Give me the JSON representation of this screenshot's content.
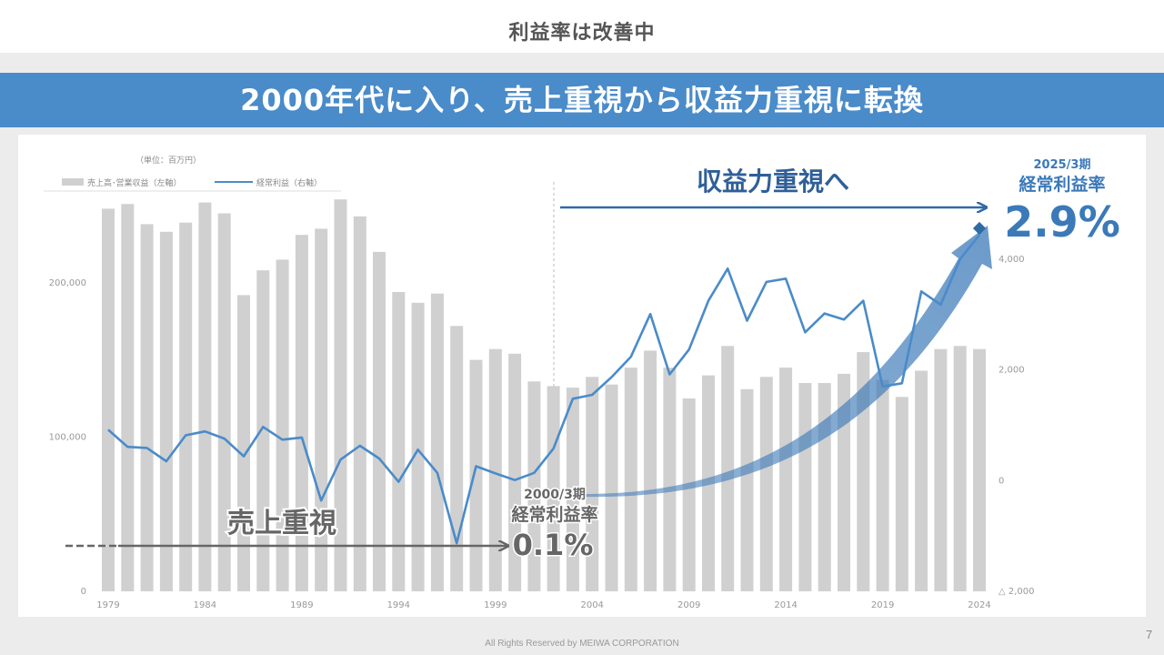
{
  "page": {
    "title": "利益率は改善中",
    "banner": "2000年代に入り、売上重視から収益力重視に転換",
    "footer": "All Rights Reserved by MEIWA CORPORATION",
    "page_number": "7"
  },
  "colors": {
    "banner": "#4a8bc9",
    "bar": "#d0d0d0",
    "line": "#4a8bc9",
    "accent_blue": "#3b79b8",
    "dark_gray": "#666666"
  },
  "chart_data": {
    "type": "bar+line",
    "unit_note": "（単位：百万円）",
    "legend": [
      {
        "name": "売上高･営業収益（左軸）",
        "type": "bar"
      },
      {
        "name": "経常利益（右軸）",
        "type": "line"
      }
    ],
    "categories": [
      "1979",
      "1980",
      "1981",
      "1982",
      "1983",
      "1984",
      "1985",
      "1986",
      "1987",
      "1988",
      "1989",
      "1990",
      "1991",
      "1992",
      "1993",
      "1994",
      "1995",
      "1996",
      "1997",
      "1998",
      "1999",
      "2000",
      "2001",
      "2002",
      "2003",
      "2004",
      "2005",
      "2006",
      "2007",
      "2008",
      "2009",
      "2010",
      "2011",
      "2012",
      "2013",
      "2014",
      "2015",
      "2016",
      "2017",
      "2018",
      "2019",
      "2020",
      "2021",
      "2022",
      "2023",
      "2024"
    ],
    "x_tick_labels": [
      "1979",
      "1984",
      "1989",
      "1994",
      "1999",
      "2004",
      "2009",
      "2014",
      "2019",
      "2024"
    ],
    "series": [
      {
        "name": "売上高･営業収益（左軸）",
        "axis": "left",
        "values": [
          248000,
          251000,
          238000,
          233000,
          239000,
          252000,
          245000,
          192000,
          208000,
          215000,
          231000,
          235000,
          254000,
          243000,
          220000,
          194000,
          187000,
          193000,
          172000,
          150000,
          157000,
          154000,
          136000,
          133000,
          132000,
          139000,
          134000,
          145000,
          156000,
          145000,
          125000,
          140000,
          159000,
          131000,
          139000,
          145000,
          135000,
          135000,
          141000,
          155000,
          137000,
          126000,
          143000,
          157000,
          159000,
          157000
        ]
      },
      {
        "name": "経常利益（右軸）",
        "axis": "right",
        "values": [
          920,
          610,
          590,
          350,
          820,
          890,
          760,
          440,
          970,
          740,
          780,
          -360,
          380,
          630,
          400,
          -20,
          560,
          140,
          -1130,
          260,
          130,
          10,
          140,
          580,
          1480,
          1550,
          1870,
          2240,
          3010,
          1920,
          2370,
          3250,
          3830,
          2890,
          3590,
          3650,
          2680,
          3020,
          2910,
          3250,
          1700,
          1760,
          3420,
          3180,
          4000,
          4440
        ]
      }
    ],
    "left_axis": {
      "ylim": [
        0,
        250000
      ],
      "tick_labels": [
        "0",
        "100,000",
        "200,000"
      ],
      "tick_values": [
        0,
        100000,
        200000
      ]
    },
    "right_axis": {
      "ylim": [
        -2000,
        4000
      ],
      "tick_labels": [
        "△ 2,000",
        "0",
        "2,000",
        "4,000"
      ],
      "tick_values": [
        -2000,
        0,
        2000,
        4000
      ]
    },
    "annotations": {
      "sales_focus": "売上重視",
      "profit_focus": "収益力重視へ",
      "start_period": "2000/3期",
      "start_label": "経常利益率",
      "start_value": "0.1%",
      "end_period": "2025/3期",
      "end_label": "経常利益率",
      "end_value": "2.9%"
    }
  }
}
